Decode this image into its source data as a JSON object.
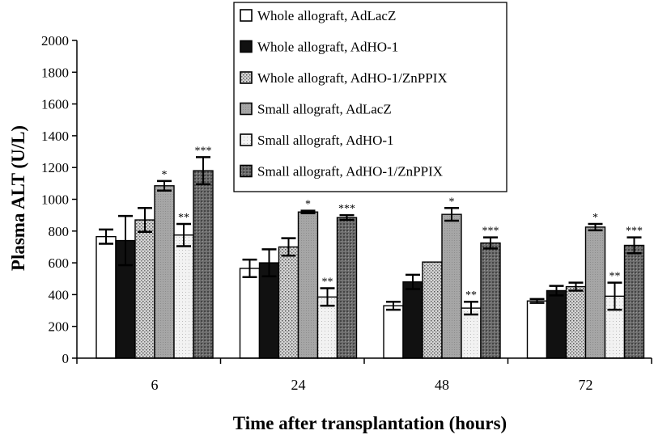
{
  "chart_data": {
    "type": "bar",
    "title": "",
    "xlabel": "Time after transplantation (hours)",
    "ylabel": "Plasma ALT (U/L)",
    "ylim": [
      0,
      2000
    ],
    "yticks": [
      0,
      200,
      400,
      600,
      800,
      1000,
      1200,
      1400,
      1600,
      1800,
      2000
    ],
    "categories": [
      "6",
      "24",
      "48",
      "72"
    ],
    "legend_position": "top-center",
    "grid": false,
    "series": [
      {
        "name": "Whole allograft, AdLacZ",
        "pattern": "white",
        "values": [
          765,
          565,
          330,
          360
        ],
        "errors": [
          45,
          55,
          25,
          12
        ],
        "marks": [
          "",
          "",
          "",
          ""
        ]
      },
      {
        "name": "Whole allograft, AdHO-1",
        "pattern": "black",
        "values": [
          740,
          600,
          480,
          425
        ],
        "errors": [
          155,
          85,
          45,
          30
        ],
        "marks": [
          "",
          "",
          "",
          ""
        ]
      },
      {
        "name": "Whole allograft, AdHO-1/ZnPPIX",
        "pattern": "dots",
        "values": [
          870,
          700,
          605,
          450
        ],
        "errors": [
          75,
          55,
          0,
          25
        ],
        "marks": [
          "",
          "",
          "",
          ""
        ]
      },
      {
        "name": "Small allograft, AdLacZ",
        "pattern": "gray",
        "values": [
          1085,
          920,
          905,
          825
        ],
        "errors": [
          30,
          8,
          40,
          20
        ],
        "marks": [
          "*",
          "*",
          "*",
          "*"
        ]
      },
      {
        "name": "Small allograft, AdHO-1",
        "pattern": "light",
        "values": [
          775,
          385,
          315,
          390
        ],
        "errors": [
          70,
          55,
          40,
          85
        ],
        "marks": [
          "**",
          "**",
          "**",
          "**"
        ]
      },
      {
        "name": "Small allograft, AdHO-1/ZnPPIX",
        "pattern": "dark",
        "values": [
          1180,
          885,
          725,
          710
        ],
        "errors": [
          85,
          15,
          35,
          50
        ],
        "marks": [
          "***",
          "***",
          "***",
          "***"
        ]
      }
    ]
  }
}
